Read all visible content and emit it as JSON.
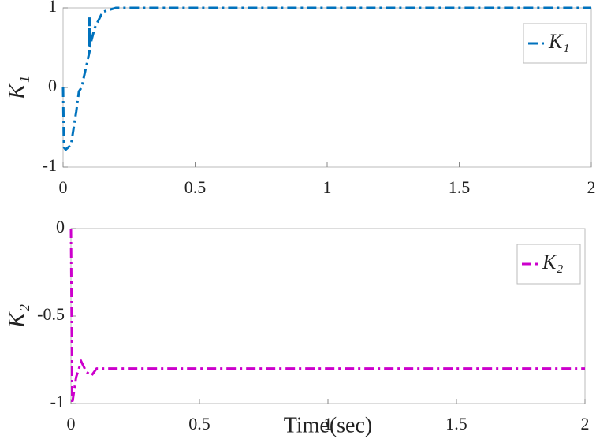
{
  "chart_data": [
    {
      "type": "line",
      "ylabel": "K₁",
      "x": [
        0,
        0.003,
        0.01,
        0.03,
        0.05,
        0.06,
        0.07,
        0.09,
        0.1,
        0.1,
        0.1,
        0.12,
        0.15,
        0.2,
        2
      ],
      "series": [
        {
          "name": "K₁",
          "color": "#0072bd",
          "values": [
            0,
            -0.75,
            -0.78,
            -0.72,
            -0.3,
            -0.05,
            0,
            0.3,
            0.45,
            0.88,
            0.5,
            0.75,
            0.95,
            1,
            1
          ]
        }
      ],
      "xlim": [
        0,
        2
      ],
      "ylim": [
        -1,
        1
      ],
      "xticks": [
        0,
        0.5,
        1,
        1.5,
        2
      ],
      "yticks": [
        -1,
        0,
        1
      ],
      "linestyle": "-.",
      "legend": "upper right"
    },
    {
      "type": "line",
      "ylabel": "K₂",
      "xlabel": "Time(sec)",
      "x": [
        0,
        0.005,
        0.01,
        0.02,
        0.04,
        0.06,
        0.08,
        0.1,
        2
      ],
      "series": [
        {
          "name": "K₂",
          "color": "#cc00cc",
          "values": [
            0,
            -1,
            -0.95,
            -0.85,
            -0.76,
            -0.82,
            -0.84,
            -0.8,
            -0.8
          ]
        }
      ],
      "xlim": [
        0,
        2
      ],
      "ylim": [
        -1,
        0
      ],
      "xticks": [
        0,
        0.5,
        1,
        1.5,
        2
      ],
      "yticks": [
        -1,
        -0.5,
        0
      ],
      "linestyle": "-.",
      "legend": "upper right"
    }
  ]
}
